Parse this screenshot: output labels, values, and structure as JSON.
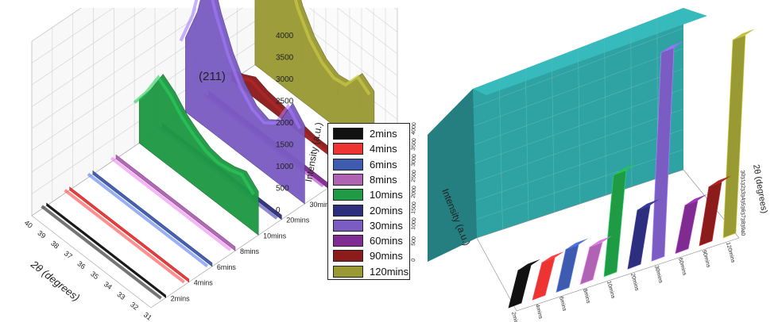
{
  "chart_data": [
    {
      "type": "area",
      "view": "3d-waterfall",
      "annotation": "(211)",
      "xlabel": "2θ (degrees)",
      "ylabel": "Intensity (a.u.)",
      "xlim": [
        30,
        40
      ],
      "ylim": [
        0,
        4000
      ],
      "x_ticks": [
        "40",
        "39",
        "38",
        "37",
        "36",
        "35",
        "34",
        "33",
        "32",
        "31"
      ],
      "y_ticks": [
        "0",
        "500",
        "1000",
        "1500",
        "2000",
        "2500",
        "3000",
        "3500",
        "4000"
      ],
      "z_ticks": [
        "2mins",
        "4mins",
        "6mins",
        "8mins",
        "10mins",
        "20mins",
        "30mins",
        "60mins",
        "90mins",
        "120mins"
      ],
      "grid": true,
      "legend_position": "right",
      "x": [
        30,
        31,
        32,
        33,
        34,
        35,
        36,
        37,
        38,
        39,
        40
      ],
      "series": [
        {
          "name": "2mins",
          "color": "#111111",
          "values": [
            60,
            60,
            60,
            60,
            60,
            60,
            60,
            60,
            60,
            60,
            60
          ]
        },
        {
          "name": "4mins",
          "color": "#ee3333",
          "values": [
            70,
            70,
            70,
            70,
            70,
            70,
            70,
            70,
            70,
            70,
            70
          ]
        },
        {
          "name": "6mins",
          "color": "#3f5bb0",
          "values": [
            80,
            80,
            80,
            80,
            80,
            80,
            80,
            80,
            80,
            80,
            80
          ]
        },
        {
          "name": "8mins",
          "color": "#b063b3",
          "values": [
            90,
            90,
            90,
            90,
            90,
            90,
            90,
            90,
            90,
            90,
            90
          ]
        },
        {
          "name": "10mins",
          "color": "#1f9a45",
          "values": [
            1000,
            1250,
            1150,
            1100,
            1150,
            1300,
            1500,
            1800,
            2000,
            1450,
            1000
          ]
        },
        {
          "name": "20mins",
          "color": "#2e2e7e",
          "values": [
            100,
            100,
            100,
            100,
            100,
            100,
            100,
            100,
            100,
            100,
            100
          ]
        },
        {
          "name": "30mins",
          "color": "#7a5cc2",
          "values": [
            1800,
            2100,
            1500,
            1300,
            1400,
            1700,
            2200,
            2900,
            3800,
            2500,
            1700
          ]
        },
        {
          "name": "60mins",
          "color": "#7f2b91",
          "values": [
            120,
            120,
            120,
            120,
            120,
            120,
            120,
            120,
            120,
            120,
            120
          ]
        },
        {
          "name": "90mins",
          "color": "#8c1c1c",
          "values": [
            200,
            200,
            200,
            200,
            250,
            300,
            350,
            400,
            500,
            350,
            250
          ]
        },
        {
          "name": "120mins",
          "color": "#9a9a34",
          "values": [
            1500,
            1700,
            1300,
            1250,
            1400,
            1700,
            2200,
            3000,
            3900,
            2900,
            1600
          ]
        }
      ]
    },
    {
      "type": "bar",
      "view": "3d",
      "xlabel": "",
      "ylabel": "Intensity (a.u.)",
      "zlabel": "2θ (degrees)",
      "ylim": [
        0,
        4000
      ],
      "y_ticks": [
        "0",
        "500",
        "1000",
        "1500",
        "2000",
        "2500",
        "3000",
        "3500",
        "4000"
      ],
      "z_ticks": [
        "30",
        "31",
        "32",
        "33",
        "34",
        "35",
        "36",
        "37",
        "38",
        "39",
        "40"
      ],
      "categories": [
        "2mins",
        "4mins",
        "6mins",
        "8mins",
        "10mins",
        "20mins",
        "30mins",
        "60mins",
        "90mins",
        "120mins"
      ],
      "colors": [
        "#111111",
        "#ee3333",
        "#3f5bb0",
        "#b063b3",
        "#1f9a45",
        "#2e2e7e",
        "#7a5cc2",
        "#7f2b91",
        "#8c1c1c",
        "#9a9a34"
      ],
      "values": [
        700,
        700,
        800,
        700,
        1900,
        1100,
        3900,
        900,
        1100,
        3700
      ],
      "wall_color": "#2fa2a3"
    }
  ],
  "legend": {
    "items": [
      {
        "label": "2mins",
        "color": "#111111"
      },
      {
        "label": "4mins",
        "color": "#ee3333"
      },
      {
        "label": "6mins",
        "color": "#3f5bb0"
      },
      {
        "label": "8mins",
        "color": "#b063b3"
      },
      {
        "label": "10mins",
        "color": "#1f9a45"
      },
      {
        "label": "20mins",
        "color": "#2e2e7e"
      },
      {
        "label": "30mins",
        "color": "#7a5cc2"
      },
      {
        "label": "60mins",
        "color": "#7f2b91"
      },
      {
        "label": "90mins",
        "color": "#8c1c1c"
      },
      {
        "label": "120mins",
        "color": "#9a9a34"
      }
    ]
  }
}
